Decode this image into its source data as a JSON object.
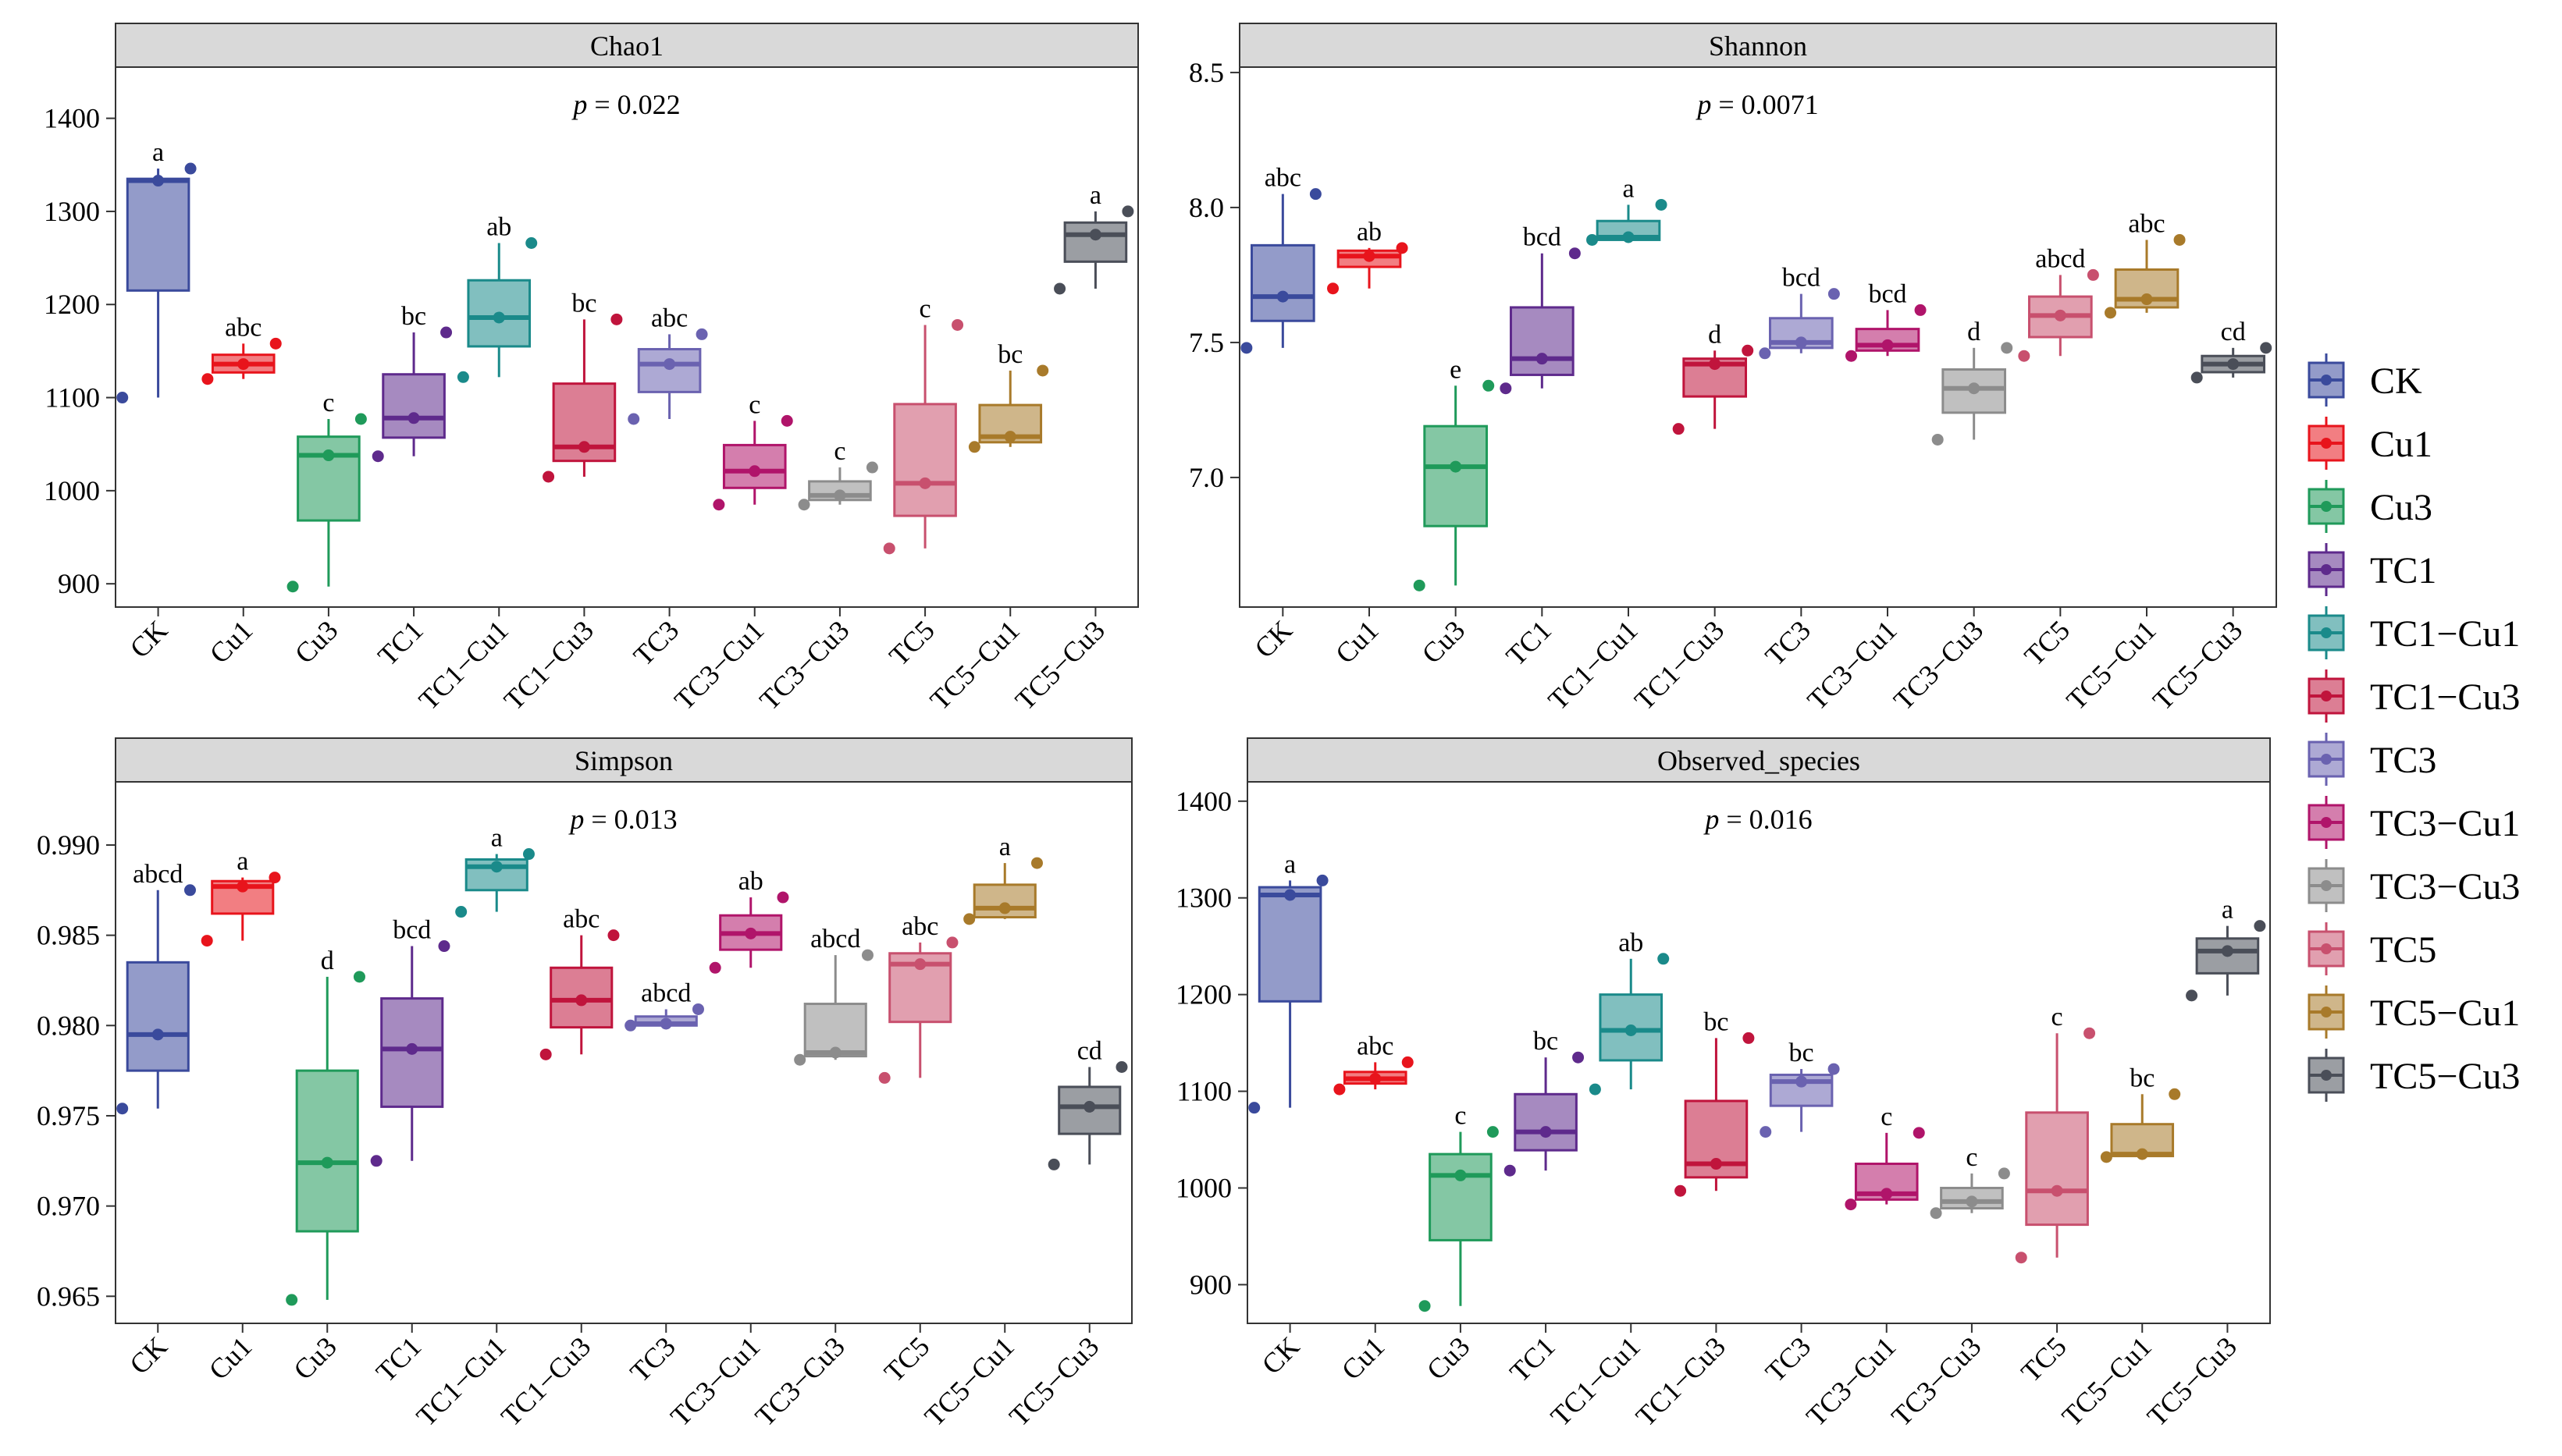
{
  "groups": [
    "CK",
    "Cu1",
    "Cu3",
    "TC1",
    "TC1−Cu1",
    "TC1−Cu3",
    "TC3",
    "TC3−Cu1",
    "TC3−Cu3",
    "TC5",
    "TC5−Cu1",
    "TC5−Cu3"
  ],
  "colors": [
    "#3a4a9c",
    "#e8141c",
    "#1f9a5a",
    "#5e2a8c",
    "#1a8a8a",
    "#c0143c",
    "#6a62b0",
    "#b0146a",
    "#8c8c8c",
    "#c8506e",
    "#a87a2a",
    "#4a4e58"
  ],
  "chart_data": [
    {
      "type": "box",
      "title": "Chao1",
      "pvalue": "p = 0.022",
      "ylim": [
        875,
        1455
      ],
      "yticks": [
        900,
        1000,
        1100,
        1200,
        1300,
        1400
      ],
      "tick_labels": [
        "900",
        "1000",
        "1100",
        "1200",
        "1300",
        "1400"
      ],
      "letters": [
        "a",
        "abc",
        "c",
        "bc",
        "ab",
        "bc",
        "abc",
        "c",
        "c",
        "c",
        "bc",
        "a"
      ],
      "boxes": [
        {
          "min": 1100,
          "q1": 1215,
          "med": 1333,
          "q3": 1335,
          "max": 1346
        },
        {
          "min": 1120,
          "q1": 1127,
          "med": 1136,
          "q3": 1146,
          "max": 1158
        },
        {
          "min": 897,
          "q1": 968,
          "med": 1038,
          "q3": 1058,
          "max": 1077
        },
        {
          "min": 1037,
          "q1": 1057,
          "med": 1078,
          "q3": 1125,
          "max": 1170
        },
        {
          "min": 1122,
          "q1": 1155,
          "med": 1186,
          "q3": 1226,
          "max": 1266
        },
        {
          "min": 1015,
          "q1": 1032,
          "med": 1047,
          "q3": 1115,
          "max": 1184
        },
        {
          "min": 1077,
          "q1": 1106,
          "med": 1136,
          "q3": 1152,
          "max": 1168
        },
        {
          "min": 985,
          "q1": 1003,
          "med": 1021,
          "q3": 1049,
          "max": 1075
        },
        {
          "min": 985,
          "q1": 990,
          "med": 995,
          "q3": 1010,
          "max": 1025
        },
        {
          "min": 938,
          "q1": 973,
          "med": 1008,
          "q3": 1093,
          "max": 1178
        },
        {
          "min": 1047,
          "q1": 1052,
          "med": 1058,
          "q3": 1092,
          "max": 1129
        },
        {
          "min": 1217,
          "q1": 1246,
          "med": 1275,
          "q3": 1288,
          "max": 1300
        }
      ],
      "points": [
        [
          1100,
          1333,
          1346
        ],
        [
          1120,
          1136,
          1158
        ],
        [
          897,
          1038,
          1077
        ],
        [
          1037,
          1078,
          1170
        ],
        [
          1122,
          1186,
          1266
        ],
        [
          1015,
          1047,
          1184
        ],
        [
          1077,
          1136,
          1168
        ],
        [
          985,
          1021,
          1075
        ],
        [
          985,
          995,
          1025
        ],
        [
          938,
          1008,
          1178
        ],
        [
          1047,
          1058,
          1129
        ],
        [
          1217,
          1275,
          1300
        ]
      ]
    },
    {
      "type": "box",
      "title": "Shannon",
      "pvalue": "p = 0.0071",
      "ylim": [
        6.52,
        8.52
      ],
      "yticks": [
        7.0,
        7.5,
        8.0,
        8.5
      ],
      "tick_labels": [
        "7.0",
        "7.5",
        "8.0",
        "8.5"
      ],
      "letters": [
        "abc",
        "ab",
        "e",
        "bcd",
        "a",
        "d",
        "bcd",
        "bcd",
        "d",
        "abcd",
        "abc",
        "cd"
      ],
      "boxes": [
        {
          "min": 7.48,
          "q1": 7.58,
          "med": 7.67,
          "q3": 7.86,
          "max": 8.05
        },
        {
          "min": 7.7,
          "q1": 7.78,
          "med": 7.82,
          "q3": 7.84,
          "max": 7.85
        },
        {
          "min": 6.6,
          "q1": 6.82,
          "med": 7.04,
          "q3": 7.19,
          "max": 7.34
        },
        {
          "min": 7.33,
          "q1": 7.38,
          "med": 7.44,
          "q3": 7.63,
          "max": 7.83
        },
        {
          "min": 7.88,
          "q1": 7.88,
          "med": 7.89,
          "q3": 7.95,
          "max": 8.01
        },
        {
          "min": 7.18,
          "q1": 7.3,
          "med": 7.42,
          "q3": 7.44,
          "max": 7.47
        },
        {
          "min": 7.46,
          "q1": 7.48,
          "med": 7.5,
          "q3": 7.59,
          "max": 7.68
        },
        {
          "min": 7.45,
          "q1": 7.47,
          "med": 7.49,
          "q3": 7.55,
          "max": 7.62
        },
        {
          "min": 7.14,
          "q1": 7.24,
          "med": 7.33,
          "q3": 7.4,
          "max": 7.48
        },
        {
          "min": 7.45,
          "q1": 7.52,
          "med": 7.6,
          "q3": 7.67,
          "max": 7.75
        },
        {
          "min": 7.61,
          "q1": 7.63,
          "med": 7.66,
          "q3": 7.77,
          "max": 7.88
        },
        {
          "min": 7.37,
          "q1": 7.39,
          "med": 7.42,
          "q3": 7.45,
          "max": 7.48
        }
      ],
      "points": [
        [
          7.48,
          7.67,
          8.05
        ],
        [
          7.7,
          7.82,
          7.85
        ],
        [
          6.6,
          7.04,
          7.34
        ],
        [
          7.33,
          7.44,
          7.83
        ],
        [
          7.88,
          7.89,
          8.01
        ],
        [
          7.18,
          7.42,
          7.47
        ],
        [
          7.46,
          7.5,
          7.68
        ],
        [
          7.45,
          7.49,
          7.62
        ],
        [
          7.14,
          7.33,
          7.48
        ],
        [
          7.45,
          7.6,
          7.75
        ],
        [
          7.61,
          7.66,
          7.88
        ],
        [
          7.37,
          7.42,
          7.48
        ]
      ]
    },
    {
      "type": "box",
      "title": "Simpson",
      "pvalue": "p = 0.013",
      "ylim": [
        0.9635,
        0.9935
      ],
      "yticks": [
        0.965,
        0.97,
        0.975,
        0.98,
        0.985,
        0.99
      ],
      "tick_labels": [
        "0.965",
        "0.970",
        "0.975",
        "0.980",
        "0.985",
        "0.990"
      ],
      "letters": [
        "abcd",
        "a",
        "d",
        "bcd",
        "a",
        "abc",
        "abcd",
        "ab",
        "abcd",
        "abc",
        "a",
        "cd"
      ],
      "boxes": [
        {
          "min": 0.9754,
          "q1": 0.9775,
          "med": 0.9795,
          "q3": 0.9835,
          "max": 0.9875
        },
        {
          "min": 0.9847,
          "q1": 0.9862,
          "med": 0.9877,
          "q3": 0.988,
          "max": 0.9882
        },
        {
          "min": 0.9648,
          "q1": 0.9686,
          "med": 0.9724,
          "q3": 0.9775,
          "max": 0.9827
        },
        {
          "min": 0.9725,
          "q1": 0.9755,
          "med": 0.9787,
          "q3": 0.9815,
          "max": 0.9844
        },
        {
          "min": 0.9863,
          "q1": 0.9875,
          "med": 0.9888,
          "q3": 0.9892,
          "max": 0.9895
        },
        {
          "min": 0.9784,
          "q1": 0.9799,
          "med": 0.9814,
          "q3": 0.9832,
          "max": 0.985
        },
        {
          "min": 0.98,
          "q1": 0.98,
          "med": 0.9801,
          "q3": 0.9805,
          "max": 0.9809
        },
        {
          "min": 0.9832,
          "q1": 0.9842,
          "med": 0.9851,
          "q3": 0.9861,
          "max": 0.9871
        },
        {
          "min": 0.9781,
          "q1": 0.9783,
          "med": 0.9785,
          "q3": 0.9812,
          "max": 0.9839
        },
        {
          "min": 0.9771,
          "q1": 0.9802,
          "med": 0.9834,
          "q3": 0.984,
          "max": 0.9846
        },
        {
          "min": 0.9859,
          "q1": 0.986,
          "med": 0.9865,
          "q3": 0.9878,
          "max": 0.989
        },
        {
          "min": 0.9723,
          "q1": 0.974,
          "med": 0.9755,
          "q3": 0.9766,
          "max": 0.9777
        }
      ],
      "points": [
        [
          0.9754,
          0.9795,
          0.9875
        ],
        [
          0.9847,
          0.9877,
          0.9882
        ],
        [
          0.9648,
          0.9724,
          0.9827
        ],
        [
          0.9725,
          0.9787,
          0.9844
        ],
        [
          0.9863,
          0.9888,
          0.9895
        ],
        [
          0.9784,
          0.9814,
          0.985
        ],
        [
          0.98,
          0.9801,
          0.9809
        ],
        [
          0.9832,
          0.9851,
          0.9871
        ],
        [
          0.9781,
          0.9785,
          0.9839
        ],
        [
          0.9771,
          0.9834,
          0.9846
        ],
        [
          0.9859,
          0.9865,
          0.989
        ],
        [
          0.9723,
          0.9755,
          0.9777
        ]
      ]
    },
    {
      "type": "box",
      "title": "Observed_species",
      "pvalue": "p = 0.016",
      "ylim": [
        860,
        1420
      ],
      "yticks": [
        900,
        1000,
        1100,
        1200,
        1300,
        1400
      ],
      "tick_labels": [
        "900",
        "1000",
        "1100",
        "1200",
        "1300",
        "1400"
      ],
      "letters": [
        "a",
        "abc",
        "c",
        "bc",
        "ab",
        "bc",
        "bc",
        "c",
        "c",
        "c",
        "bc",
        "a"
      ],
      "boxes": [
        {
          "min": 1083,
          "q1": 1193,
          "med": 1303,
          "q3": 1311,
          "max": 1318
        },
        {
          "min": 1102,
          "q1": 1108,
          "med": 1113,
          "q3": 1120,
          "max": 1130
        },
        {
          "min": 878,
          "q1": 946,
          "med": 1013,
          "q3": 1035,
          "max": 1058
        },
        {
          "min": 1018,
          "q1": 1039,
          "med": 1058,
          "q3": 1097,
          "max": 1135
        },
        {
          "min": 1102,
          "q1": 1132,
          "med": 1163,
          "q3": 1200,
          "max": 1237
        },
        {
          "min": 997,
          "q1": 1011,
          "med": 1025,
          "q3": 1090,
          "max": 1155
        },
        {
          "min": 1058,
          "q1": 1085,
          "med": 1110,
          "q3": 1117,
          "max": 1123
        },
        {
          "min": 983,
          "q1": 988,
          "med": 994,
          "q3": 1025,
          "max": 1057
        },
        {
          "min": 974,
          "q1": 979,
          "med": 986,
          "q3": 1000,
          "max": 1015
        },
        {
          "min": 928,
          "q1": 962,
          "med": 997,
          "q3": 1078,
          "max": 1160
        },
        {
          "min": 1032,
          "q1": 1033,
          "med": 1035,
          "q3": 1066,
          "max": 1097
        },
        {
          "min": 1199,
          "q1": 1222,
          "med": 1245,
          "q3": 1258,
          "max": 1271
        }
      ],
      "points": [
        [
          1083,
          1303,
          1318
        ],
        [
          1102,
          1113,
          1130
        ],
        [
          878,
          1013,
          1058
        ],
        [
          1018,
          1058,
          1135
        ],
        [
          1102,
          1163,
          1237
        ],
        [
          997,
          1025,
          1155
        ],
        [
          1058,
          1110,
          1123
        ],
        [
          983,
          994,
          1057
        ],
        [
          974,
          986,
          1015
        ],
        [
          928,
          997,
          1160
        ],
        [
          1032,
          1035,
          1097
        ],
        [
          1199,
          1245,
          1271
        ]
      ]
    }
  ]
}
